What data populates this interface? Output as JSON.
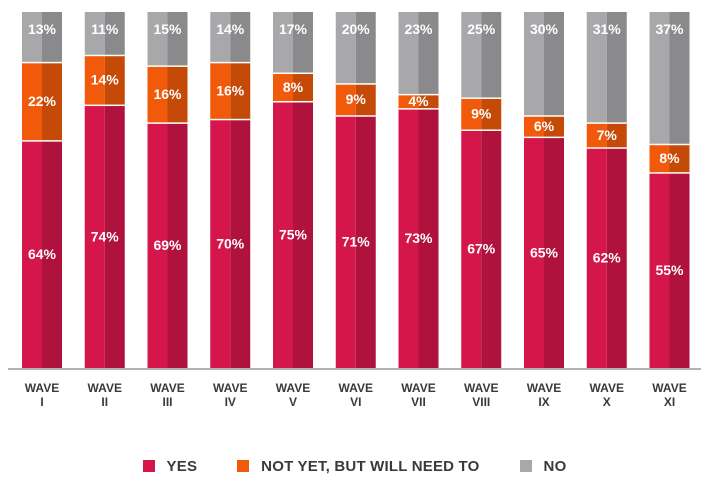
{
  "chart_data": {
    "type": "bar",
    "stacked": true,
    "title": "",
    "xlabel": "",
    "ylabel": "",
    "ylim": [
      0,
      100
    ],
    "grid": false,
    "legend_position": "bottom",
    "categories": [
      [
        "WAVE",
        "I"
      ],
      [
        "WAVE",
        "II"
      ],
      [
        "WAVE",
        "III"
      ],
      [
        "WAVE",
        "IV"
      ],
      [
        "WAVE",
        "V"
      ],
      [
        "WAVE",
        "VI"
      ],
      [
        "WAVE",
        "VII"
      ],
      [
        "WAVE",
        "VIII"
      ],
      [
        "WAVE",
        "IX"
      ],
      [
        "WAVE",
        "X"
      ],
      [
        "WAVE",
        "XI"
      ]
    ],
    "series": [
      {
        "name": "YES",
        "color": "#d4164a",
        "values": [
          64,
          74,
          69,
          70,
          75,
          71,
          73,
          67,
          65,
          62,
          55
        ],
        "labels": [
          "64%",
          "74%",
          "69%",
          "70%",
          "75%",
          "71%",
          "73%",
          "67%",
          "65%",
          "62%",
          "55%"
        ]
      },
      {
        "name": "NOT YET, BUT WILL NEED TO",
        "color": "#f05a0a",
        "values": [
          22,
          14,
          16,
          16,
          8,
          9,
          4,
          9,
          6,
          7,
          8
        ],
        "labels": [
          "22%",
          "14%",
          "16%",
          "16%",
          "8%",
          "9%",
          "4%",
          "9%",
          "6%",
          "7%",
          "8%"
        ]
      },
      {
        "name": "NO",
        "color": "#a8a8ab",
        "values": [
          13,
          11,
          15,
          14,
          17,
          20,
          23,
          25,
          30,
          31,
          37
        ],
        "labels": [
          "13%",
          "11%",
          "15%",
          "14%",
          "17%",
          "20%",
          "23%",
          "25%",
          "30%",
          "31%",
          "37%"
        ]
      }
    ]
  }
}
